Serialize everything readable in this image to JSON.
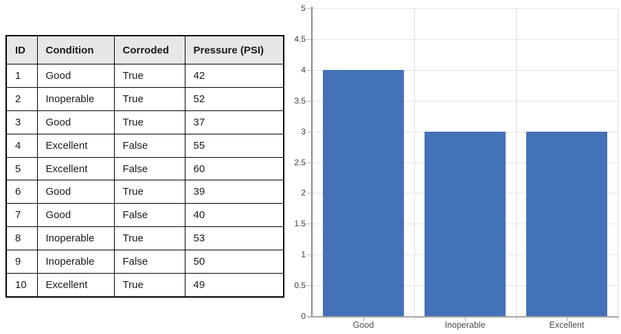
{
  "table": {
    "headers": [
      "ID",
      "Condition",
      "Corroded",
      "Pressure (PSI)"
    ],
    "rows": [
      [
        "1",
        "Good",
        "True",
        "42"
      ],
      [
        "2",
        "Inoperable",
        "True",
        "52"
      ],
      [
        "3",
        "Good",
        "True",
        "37"
      ],
      [
        "4",
        "Excellent",
        "False",
        "55"
      ],
      [
        "5",
        "Excellent",
        "False",
        "60"
      ],
      [
        "6",
        "Good",
        "True",
        "39"
      ],
      [
        "7",
        "Good",
        "False",
        "40"
      ],
      [
        "8",
        "Inoperable",
        "True",
        "53"
      ],
      [
        "9",
        "Inoperable",
        "False",
        "50"
      ],
      [
        "10",
        "Excellent",
        "True",
        "49"
      ]
    ]
  },
  "chart_data": {
    "type": "bar",
    "categories": [
      "Good",
      "Inoperable",
      "Excellent"
    ],
    "values": [
      4,
      3,
      3
    ],
    "title": "",
    "xlabel": "",
    "ylabel": "",
    "ylim": [
      0,
      5
    ],
    "ytick_step": 0.5,
    "ytick_labels": [
      "0",
      "0.5",
      "1",
      "1.5",
      "2",
      "2.5",
      "3",
      "3.5",
      "4",
      "4.5",
      "5"
    ],
    "grid": true,
    "legend_position": "none",
    "bar_color": "#4472b8",
    "gridline_color": "#e4e4e4",
    "axis_color": "#a6a6a6"
  },
  "colors": {
    "table_header_bg": "#e8e7e7",
    "table_border": "#000000",
    "bar_fill": "#4472b8"
  }
}
